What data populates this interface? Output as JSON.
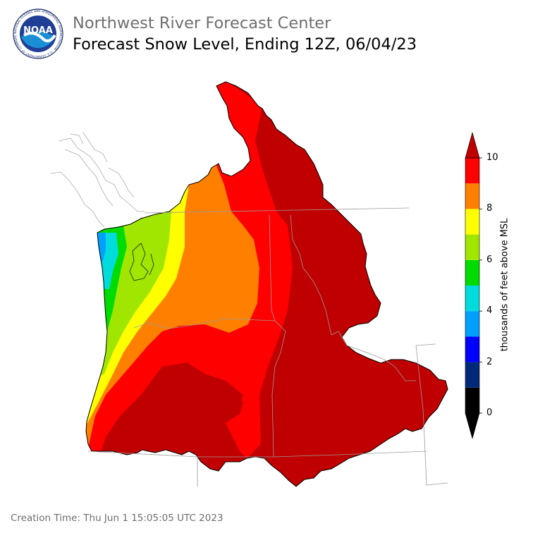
{
  "header": {
    "agency": "Northwest River Forecast Center",
    "title": "Forecast Snow Level, Ending 12Z, 06/04/23",
    "logo_text": "NOAA",
    "logo_ring_text": "NATIONAL OCEANIC AND ATMOSPHERIC ADMINISTRATION · U.S. DEPARTMENT OF COMMERCE"
  },
  "colorbar": {
    "label": "thousands of feet above MSL",
    "ticks": [
      "0",
      "2",
      "4",
      "6",
      "8",
      "10"
    ],
    "bins": [
      {
        "from": 0,
        "to": 1,
        "color": "#000000"
      },
      {
        "from": 1,
        "to": 2,
        "color": "#002a78"
      },
      {
        "from": 2,
        "to": 3,
        "color": "#0000ff"
      },
      {
        "from": 3,
        "to": 4,
        "color": "#00a0ff"
      },
      {
        "from": 4,
        "to": 5,
        "color": "#00dcdc"
      },
      {
        "from": 5,
        "to": 6,
        "color": "#00dc00"
      },
      {
        "from": 6,
        "to": 7,
        "color": "#a0e600"
      },
      {
        "from": 7,
        "to": 8,
        "color": "#ffff00"
      },
      {
        "from": 8,
        "to": 9,
        "color": "#ff8000"
      },
      {
        "from": 9,
        "to": 10,
        "color": "#ff0000"
      }
    ],
    "over_color": "#c00000",
    "under_color": "#000000"
  },
  "map": {
    "colors": {
      "above_10": "#c00000",
      "9_10": "#ff0000",
      "8_9": "#ff8000",
      "7_8": "#ffff00",
      "6_7": "#a0e600",
      "5_6": "#00dc00",
      "4_5": "#00dcdc",
      "3_4": "#00a0ff"
    }
  },
  "footer": {
    "creation_time": "Creation Time: Thu Jun 1 15:05:05 UTC 2023"
  }
}
